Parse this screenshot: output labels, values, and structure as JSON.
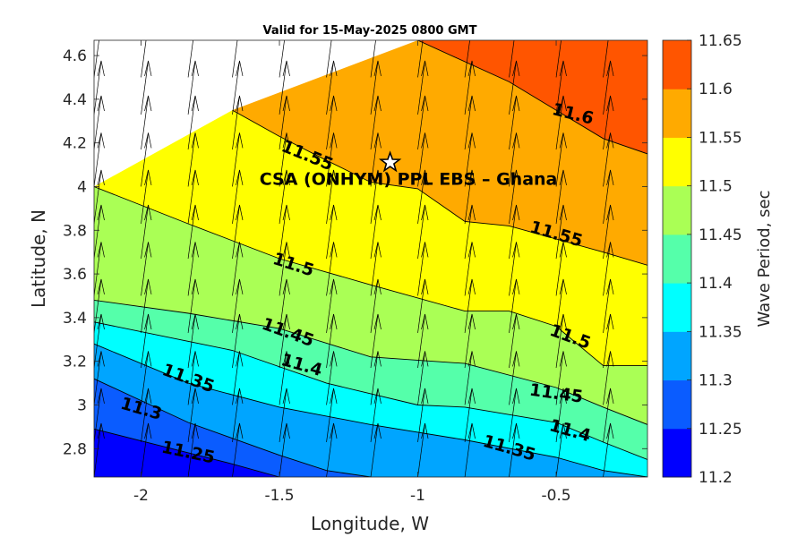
{
  "chart_data": {
    "type": "contour",
    "title": "Valid for 15-May-2025 0800 GMT",
    "xlabel": "Longitude, W",
    "ylabel": "Latitude, N",
    "xlim": [
      -2.17,
      -0.17
    ],
    "ylim": [
      2.67,
      4.67
    ],
    "xticks": [
      -2,
      -1.5,
      -1,
      -0.5
    ],
    "xtick_labels": [
      "-2",
      "-1.5",
      "-1",
      "-0.5"
    ],
    "yticks": [
      2.8,
      3.0,
      3.2,
      3.4,
      3.6,
      3.8,
      4.0,
      4.2,
      4.4,
      4.6
    ],
    "ytick_labels": [
      "2.8",
      "3",
      "3.2",
      "3.4",
      "3.6",
      "3.8",
      "4",
      "4.2",
      "4.4",
      "4.6"
    ],
    "colorbar": {
      "label": "Wave Period, sec",
      "ticks": [
        11.2,
        11.25,
        11.3,
        11.35,
        11.4,
        11.45,
        11.5,
        11.55,
        11.6,
        11.65
      ],
      "tick_labels": [
        "11.2",
        "11.25",
        "11.3",
        "11.35",
        "11.4",
        "11.45",
        "11.5",
        "11.55",
        "11.6",
        "11.65"
      ],
      "colors": [
        "#0000ff",
        "#0a5cff",
        "#00a5ff",
        "#00ffff",
        "#55ffaa",
        "#aaff55",
        "#ffff00",
        "#ffaa00",
        "#ff5500"
      ]
    },
    "contour_lines": [
      {
        "level": "11.25",
        "points": [
          [
            -2.17,
            2.89
          ],
          [
            -1.67,
            2.73
          ],
          [
            -1.5,
            2.67
          ]
        ]
      },
      {
        "level": "11.3",
        "points": [
          [
            -2.17,
            3.12
          ],
          [
            -1.83,
            2.92
          ],
          [
            -1.5,
            2.77
          ],
          [
            -1.33,
            2.7
          ],
          [
            -1.17,
            2.67
          ]
        ]
      },
      {
        "level": "11.35",
        "points": [
          [
            -2.17,
            3.28
          ],
          [
            -1.83,
            3.1
          ],
          [
            -1.5,
            2.99
          ],
          [
            -1.17,
            2.91
          ],
          [
            -0.83,
            2.84
          ],
          [
            -0.5,
            2.76
          ],
          [
            -0.33,
            2.7
          ],
          [
            -0.17,
            2.67
          ]
        ]
      },
      {
        "level": "11.4",
        "points": [
          [
            -2.17,
            3.38
          ],
          [
            -1.67,
            3.25
          ],
          [
            -1.33,
            3.1
          ],
          [
            -1.0,
            3.0
          ],
          [
            -0.83,
            2.99
          ],
          [
            -0.5,
            2.92
          ],
          [
            -0.33,
            2.83
          ],
          [
            -0.17,
            2.75
          ]
        ]
      },
      {
        "level": "11.45",
        "points": [
          [
            -2.17,
            3.48
          ],
          [
            -1.83,
            3.42
          ],
          [
            -1.5,
            3.35
          ],
          [
            -1.17,
            3.22
          ],
          [
            -0.83,
            3.19
          ],
          [
            -0.5,
            3.08
          ],
          [
            -0.33,
            2.99
          ],
          [
            -0.17,
            2.91
          ]
        ]
      },
      {
        "level": "11.5",
        "points": [
          [
            -2.17,
            4.0
          ],
          [
            -1.83,
            3.83
          ],
          [
            -1.5,
            3.67
          ],
          [
            -1.17,
            3.55
          ],
          [
            -0.83,
            3.43
          ],
          [
            -0.67,
            3.43
          ],
          [
            -0.5,
            3.36
          ],
          [
            -0.33,
            3.18
          ],
          [
            -0.17,
            3.18
          ]
        ]
      },
      {
        "level": "11.55",
        "points": [
          [
            -1.67,
            4.35
          ],
          [
            -1.5,
            4.23
          ],
          [
            -1.33,
            4.12
          ],
          [
            -1.17,
            4.02
          ],
          [
            -1.0,
            3.99
          ],
          [
            -0.83,
            3.84
          ],
          [
            -0.67,
            3.82
          ],
          [
            -0.33,
            3.7
          ],
          [
            -0.17,
            3.64
          ]
        ]
      },
      {
        "level": "11.6",
        "points": [
          [
            -1.0,
            4.67
          ],
          [
            -0.67,
            4.48
          ],
          [
            -0.5,
            4.35
          ],
          [
            -0.33,
            4.22
          ],
          [
            -0.17,
            4.15
          ]
        ]
      }
    ],
    "contour_labels": [
      {
        "text": "11.6",
        "x": -0.44,
        "y": 4.33,
        "angle": 14
      },
      {
        "text": "11.55",
        "x": -1.4,
        "y": 4.14,
        "angle": 22
      },
      {
        "text": "11.55",
        "x": -0.5,
        "y": 3.78,
        "angle": 16
      },
      {
        "text": "11.5",
        "x": -1.45,
        "y": 3.64,
        "angle": 18
      },
      {
        "text": "11.5",
        "x": -0.45,
        "y": 3.31,
        "angle": 20
      },
      {
        "text": "11.45",
        "x": -1.47,
        "y": 3.33,
        "angle": 20
      },
      {
        "text": "11.45",
        "x": -0.5,
        "y": 3.05,
        "angle": 8
      },
      {
        "text": "11.4",
        "x": -1.42,
        "y": 3.18,
        "angle": 16
      },
      {
        "text": "11.4",
        "x": -0.45,
        "y": 2.88,
        "angle": 16
      },
      {
        "text": "11.35",
        "x": -1.83,
        "y": 3.12,
        "angle": 20
      },
      {
        "text": "11.35",
        "x": -0.67,
        "y": 2.8,
        "angle": 16
      },
      {
        "text": "11.3",
        "x": -2.0,
        "y": 2.98,
        "angle": 16
      },
      {
        "text": "11.25",
        "x": -1.83,
        "y": 2.78,
        "angle": 12
      }
    ],
    "vectors": {
      "x": [
        -2.17,
        -2.0,
        -1.83,
        -1.67,
        -1.5,
        -1.33,
        -1.17,
        -1.0,
        -0.83,
        -0.67,
        -0.5,
        -0.33
      ],
      "y": [
        2.67,
        2.83,
        3.0,
        3.17,
        3.33,
        3.5,
        3.67,
        3.83,
        4.0,
        4.17,
        4.33,
        4.5
      ],
      "direction": "north-northeast"
    },
    "marker": {
      "symbol": "star",
      "x": -1.1,
      "y": 4.11
    },
    "annotation": {
      "text": "CSA (ONHYM) PPL EBS  – Ghana",
      "x": -0.94,
      "y": 4.05
    }
  }
}
